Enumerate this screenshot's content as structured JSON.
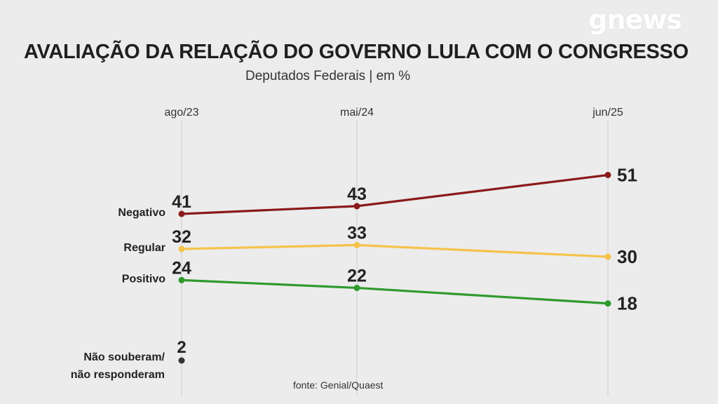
{
  "brand": {
    "logo_text": "gnews"
  },
  "header": {
    "title": "AVALIAÇÃO DA RELAÇÃO DO GOVERNO LULA COM O CONGRESSO",
    "subtitle": "Deputados Federais | em %"
  },
  "footer": {
    "source": "fonte: Genial/Quaest"
  },
  "chart_data": {
    "type": "line",
    "title": "AVALIAÇÃO DA RELAÇÃO DO GOVERNO LULA COM O CONGRESSO",
    "subtitle": "Deputados Federais | em %",
    "x": [
      "ago/23",
      "mai/24",
      "jun/25"
    ],
    "ylim": [
      0,
      60
    ],
    "grid": "vertical",
    "series": [
      {
        "name": "Negativo",
        "values": [
          41,
          43,
          51
        ],
        "color": "#8b1a1a"
      },
      {
        "name": "Regular",
        "values": [
          32,
          33,
          30
        ],
        "color": "#f5c34a"
      },
      {
        "name": "Positivo",
        "values": [
          24,
          22,
          18
        ],
        "color": "#2e9a2e"
      },
      {
        "name": "Não souberam/ não responderam",
        "name_lines": [
          "Não souberam/",
          "não responderam"
        ],
        "values": [
          2,
          null,
          null
        ],
        "color": "#333333"
      }
    ]
  }
}
